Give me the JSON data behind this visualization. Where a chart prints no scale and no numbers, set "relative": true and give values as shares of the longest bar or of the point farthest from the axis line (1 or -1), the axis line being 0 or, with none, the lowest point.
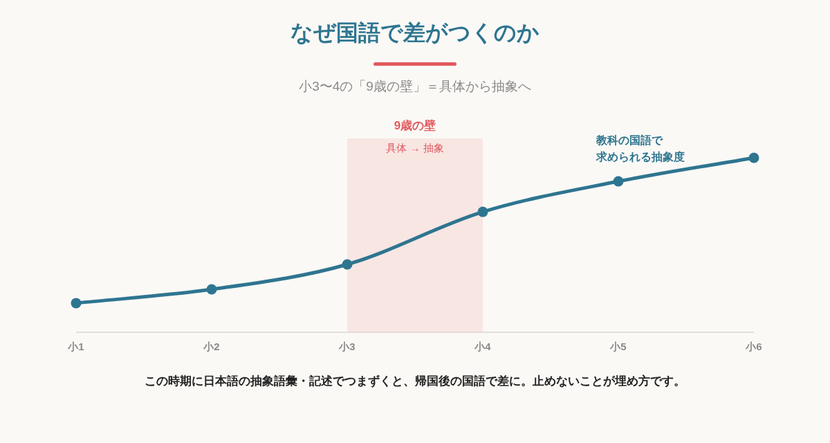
{
  "chart_data": {
    "type": "line",
    "title": "なぜ国語で差がつくのか",
    "subtitle": "小3〜4の「9歳の壁」＝具体から抽象へ",
    "categories": [
      "小1",
      "小2",
      "小3",
      "小4",
      "小5",
      "小6"
    ],
    "series": [
      {
        "color": "#2e7590",
        "values": [
          0.167,
          0.246,
          0.389,
          0.69,
          0.865,
          1
        ]
      }
    ],
    "relative": true,
    "marker": "circle",
    "line_style": "solid",
    "bands": [
      {
        "axis": "x",
        "from": "小3",
        "to": "小4",
        "label": "9歳の壁",
        "color": "#f8e6e3"
      }
    ],
    "annotations": [
      "具体 → 抽象",
      "教科の国語で",
      "求められる抽象度",
      "この時期に日本語の抽象語彙・記述でつまずくと、帰国後の国語で差に。止めないことが埋め方です。"
    ]
  }
}
